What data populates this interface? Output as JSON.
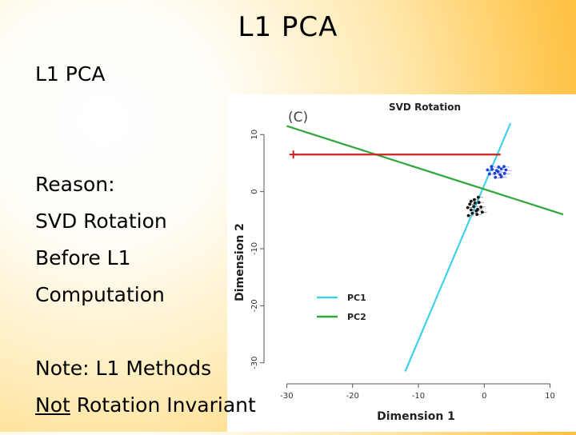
{
  "slide": {
    "title": "L1 PCA",
    "subtitle": "L1 PCA",
    "reason_lines": [
      "Reason:",
      "SVD Rotation",
      "Before L1",
      "Computation"
    ],
    "note_line1": "Note:  L1 Methods",
    "note_not": "Not",
    "note_rest": " Rotation Invariant"
  },
  "colors": {
    "pc1": "#3fd1e8",
    "pc2": "#2fa63a",
    "red": "#cc2222",
    "blue": "#1f3fd6",
    "black": "#111111"
  },
  "chart_data": {
    "type": "scatter",
    "panel_label": "(C)",
    "title": "SVD  Rotation",
    "xlabel": "Dimension 1",
    "ylabel": "Dimension 2",
    "xlim": [
      -32,
      12
    ],
    "ylim": [
      -32,
      12
    ],
    "xticks": [
      -30,
      -20,
      -10,
      0,
      10
    ],
    "yticks": [
      10,
      0,
      -10,
      -20,
      -30
    ],
    "legend": [
      {
        "label": "PC1",
        "color": "#3fd1e8"
      },
      {
        "label": "PC2",
        "color": "#2fa63a"
      }
    ],
    "lines": [
      {
        "name": "PC1",
        "color": "#3fd1e8",
        "points": [
          [
            -12,
            -31.5
          ],
          [
            4,
            12
          ]
        ]
      },
      {
        "name": "PC2",
        "color": "#2fa63a",
        "points": [
          [
            -30,
            11.5
          ],
          [
            12,
            -4
          ]
        ]
      },
      {
        "name": "outlier-segment",
        "color": "#cc2222",
        "points": [
          [
            -29,
            6.5
          ],
          [
            2.5,
            6.5
          ]
        ]
      }
    ],
    "outlier_point": [
      -29,
      6.5
    ],
    "blue_points": [
      [
        0.5,
        3.8
      ],
      [
        1.2,
        3.9
      ],
      [
        1.9,
        3.7
      ],
      [
        2.6,
        4.0
      ],
      [
        3.3,
        3.8
      ],
      [
        0.8,
        3.1
      ],
      [
        1.6,
        3.2
      ],
      [
        2.4,
        3.0
      ],
      [
        3.1,
        3.2
      ],
      [
        1.1,
        4.4
      ],
      [
        2.2,
        4.3
      ],
      [
        3.0,
        4.4
      ],
      [
        1.7,
        2.5
      ],
      [
        2.6,
        2.6
      ],
      [
        2.1,
        3.5
      ]
    ],
    "black_points": [
      [
        -2.5,
        -2.8
      ],
      [
        -2.0,
        -3.2
      ],
      [
        -1.6,
        -2.6
      ],
      [
        -1.0,
        -3.1
      ],
      [
        -0.5,
        -2.7
      ],
      [
        -2.2,
        -2.2
      ],
      [
        -1.4,
        -2.0
      ],
      [
        -0.8,
        -1.9
      ],
      [
        -1.8,
        -3.8
      ],
      [
        -1.1,
        -4.0
      ],
      [
        -0.3,
        -3.6
      ],
      [
        -2.4,
        -4.2
      ],
      [
        -1.5,
        -1.4
      ],
      [
        -0.9,
        -1.0
      ],
      [
        -2.0,
        -1.7
      ],
      [
        -1.2,
        -3.4
      ]
    ]
  }
}
